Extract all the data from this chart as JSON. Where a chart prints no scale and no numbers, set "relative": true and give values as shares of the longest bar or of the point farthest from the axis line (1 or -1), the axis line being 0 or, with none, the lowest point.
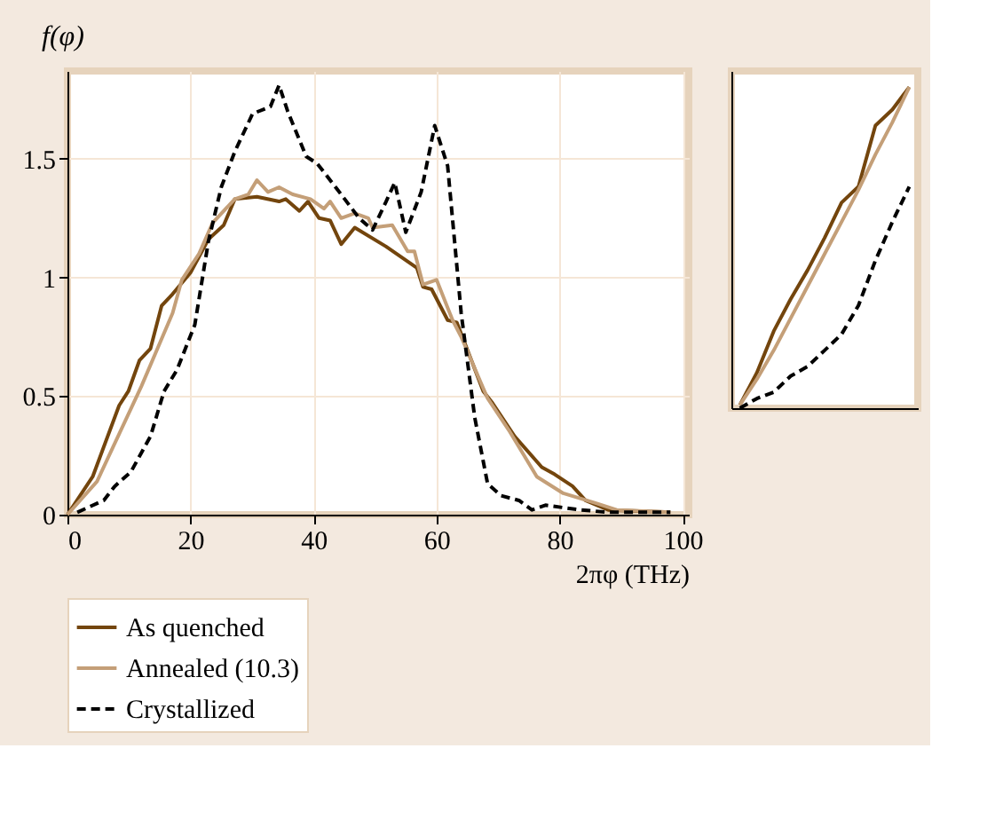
{
  "chart_data": [
    {
      "type": "line",
      "xlabel": "2πφ (THz)",
      "ylabel": "f(φ)",
      "xlim": [
        0,
        101
      ],
      "ylim": [
        0,
        1.87
      ],
      "xticks": [
        0,
        20,
        40,
        60,
        80,
        100
      ],
      "yticks": [
        0,
        0.5,
        1,
        1.5
      ],
      "grid": true,
      "legend": "bottom left",
      "series": [
        {
          "name": "As quenched",
          "color": "#73450d",
          "line_style": "solid",
          "x": [
            0,
            4.1,
            8.4,
            9.9,
            11.7,
            13.5,
            15.3,
            17.1,
            20,
            22.9,
            25.4,
            27.2,
            30.8,
            34.4,
            35.5,
            37.7,
            39.1,
            40.9,
            42.7,
            44.5,
            46.7,
            51.8,
            56.8,
            57.8,
            59.2,
            61.8,
            63.3,
            67.6,
            69.1,
            72.7,
            77.1,
            79.2,
            82.1,
            84.2,
            87.9,
            98
          ],
          "values": [
            0,
            0.16,
            0.46,
            0.52,
            0.65,
            0.7,
            0.88,
            0.93,
            1.02,
            1.16,
            1.22,
            1.33,
            1.34,
            1.32,
            1.33,
            1.28,
            1.32,
            1.25,
            1.24,
            1.14,
            1.21,
            1.13,
            1.04,
            0.96,
            0.95,
            0.82,
            0.81,
            0.52,
            0.47,
            0.33,
            0.2,
            0.17,
            0.12,
            0.06,
            0.02,
            0.01
          ]
        },
        {
          "name": "Annealed (10.3)",
          "color": "#c49f78",
          "line_style": "solid",
          "x": [
            0,
            4.8,
            12,
            17.1,
            18.6,
            21.4,
            23.6,
            27.2,
            29.4,
            30.8,
            32.6,
            34.4,
            36.6,
            39.5,
            41.7,
            42.7,
            44.5,
            46.7,
            48.9,
            49.6,
            52.8,
            55.3,
            56.4,
            57.8,
            60,
            62.6,
            64,
            68.3,
            71.9,
            76.3,
            80.6,
            85.7,
            89.3,
            98
          ],
          "values": [
            0,
            0.14,
            0.54,
            0.85,
            0.99,
            1.1,
            1.23,
            1.33,
            1.35,
            1.41,
            1.36,
            1.38,
            1.35,
            1.33,
            1.29,
            1.32,
            1.25,
            1.27,
            1.25,
            1.21,
            1.22,
            1.11,
            1.11,
            0.97,
            0.99,
            0.82,
            0.75,
            0.49,
            0.35,
            0.16,
            0.09,
            0.05,
            0.02,
            0.01
          ]
        },
        {
          "name": "Crystallized",
          "color": "#000000",
          "line_style": "dashed",
          "x": [
            1.6,
            5.9,
            7.7,
            10.3,
            13.5,
            15.7,
            17.8,
            20.7,
            22.9,
            25,
            27.2,
            30.1,
            33,
            34.4,
            35.8,
            38.8,
            40.6,
            43.9,
            47.4,
            49.6,
            51.8,
            53.2,
            55,
            57.5,
            59.7,
            61.8,
            64,
            66.2,
            68.3,
            70.5,
            73.4,
            75.5,
            77.7,
            83.4,
            87.9,
            98
          ],
          "values": [
            0.01,
            0.06,
            0.12,
            0.18,
            0.33,
            0.52,
            0.61,
            0.8,
            1.15,
            1.38,
            1.53,
            1.69,
            1.72,
            1.81,
            1.7,
            1.51,
            1.48,
            1.37,
            1.25,
            1.2,
            1.32,
            1.4,
            1.19,
            1.36,
            1.64,
            1.47,
            0.85,
            0.41,
            0.13,
            0.08,
            0.06,
            0.02,
            0.04,
            0.02,
            0.01,
            0.01
          ]
        }
      ]
    },
    {
      "type": "line",
      "relative": true,
      "tick_labels": false,
      "grid": false,
      "categories": [
        null,
        null,
        null,
        null,
        null,
        null,
        null,
        null,
        null,
        null,
        null
      ],
      "series": [
        {
          "color": "#73450d",
          "line_style": "solid",
          "values": [
            0.01,
            0.11,
            0.24,
            0.34,
            0.43,
            0.53,
            0.64,
            0.69,
            0.88,
            0.93,
            1.0
          ]
        },
        {
          "color": "#c49f78",
          "line_style": "solid",
          "values": [
            0.01,
            0.09,
            0.18,
            0.28,
            0.38,
            0.48,
            0.58,
            0.68,
            0.79,
            0.89,
            1.0
          ]
        },
        {
          "color": "#000000",
          "line_style": "dashed",
          "values": [
            0.0,
            0.03,
            0.05,
            0.1,
            0.13,
            0.18,
            0.23,
            0.32,
            0.46,
            0.58,
            0.69
          ]
        }
      ]
    }
  ]
}
